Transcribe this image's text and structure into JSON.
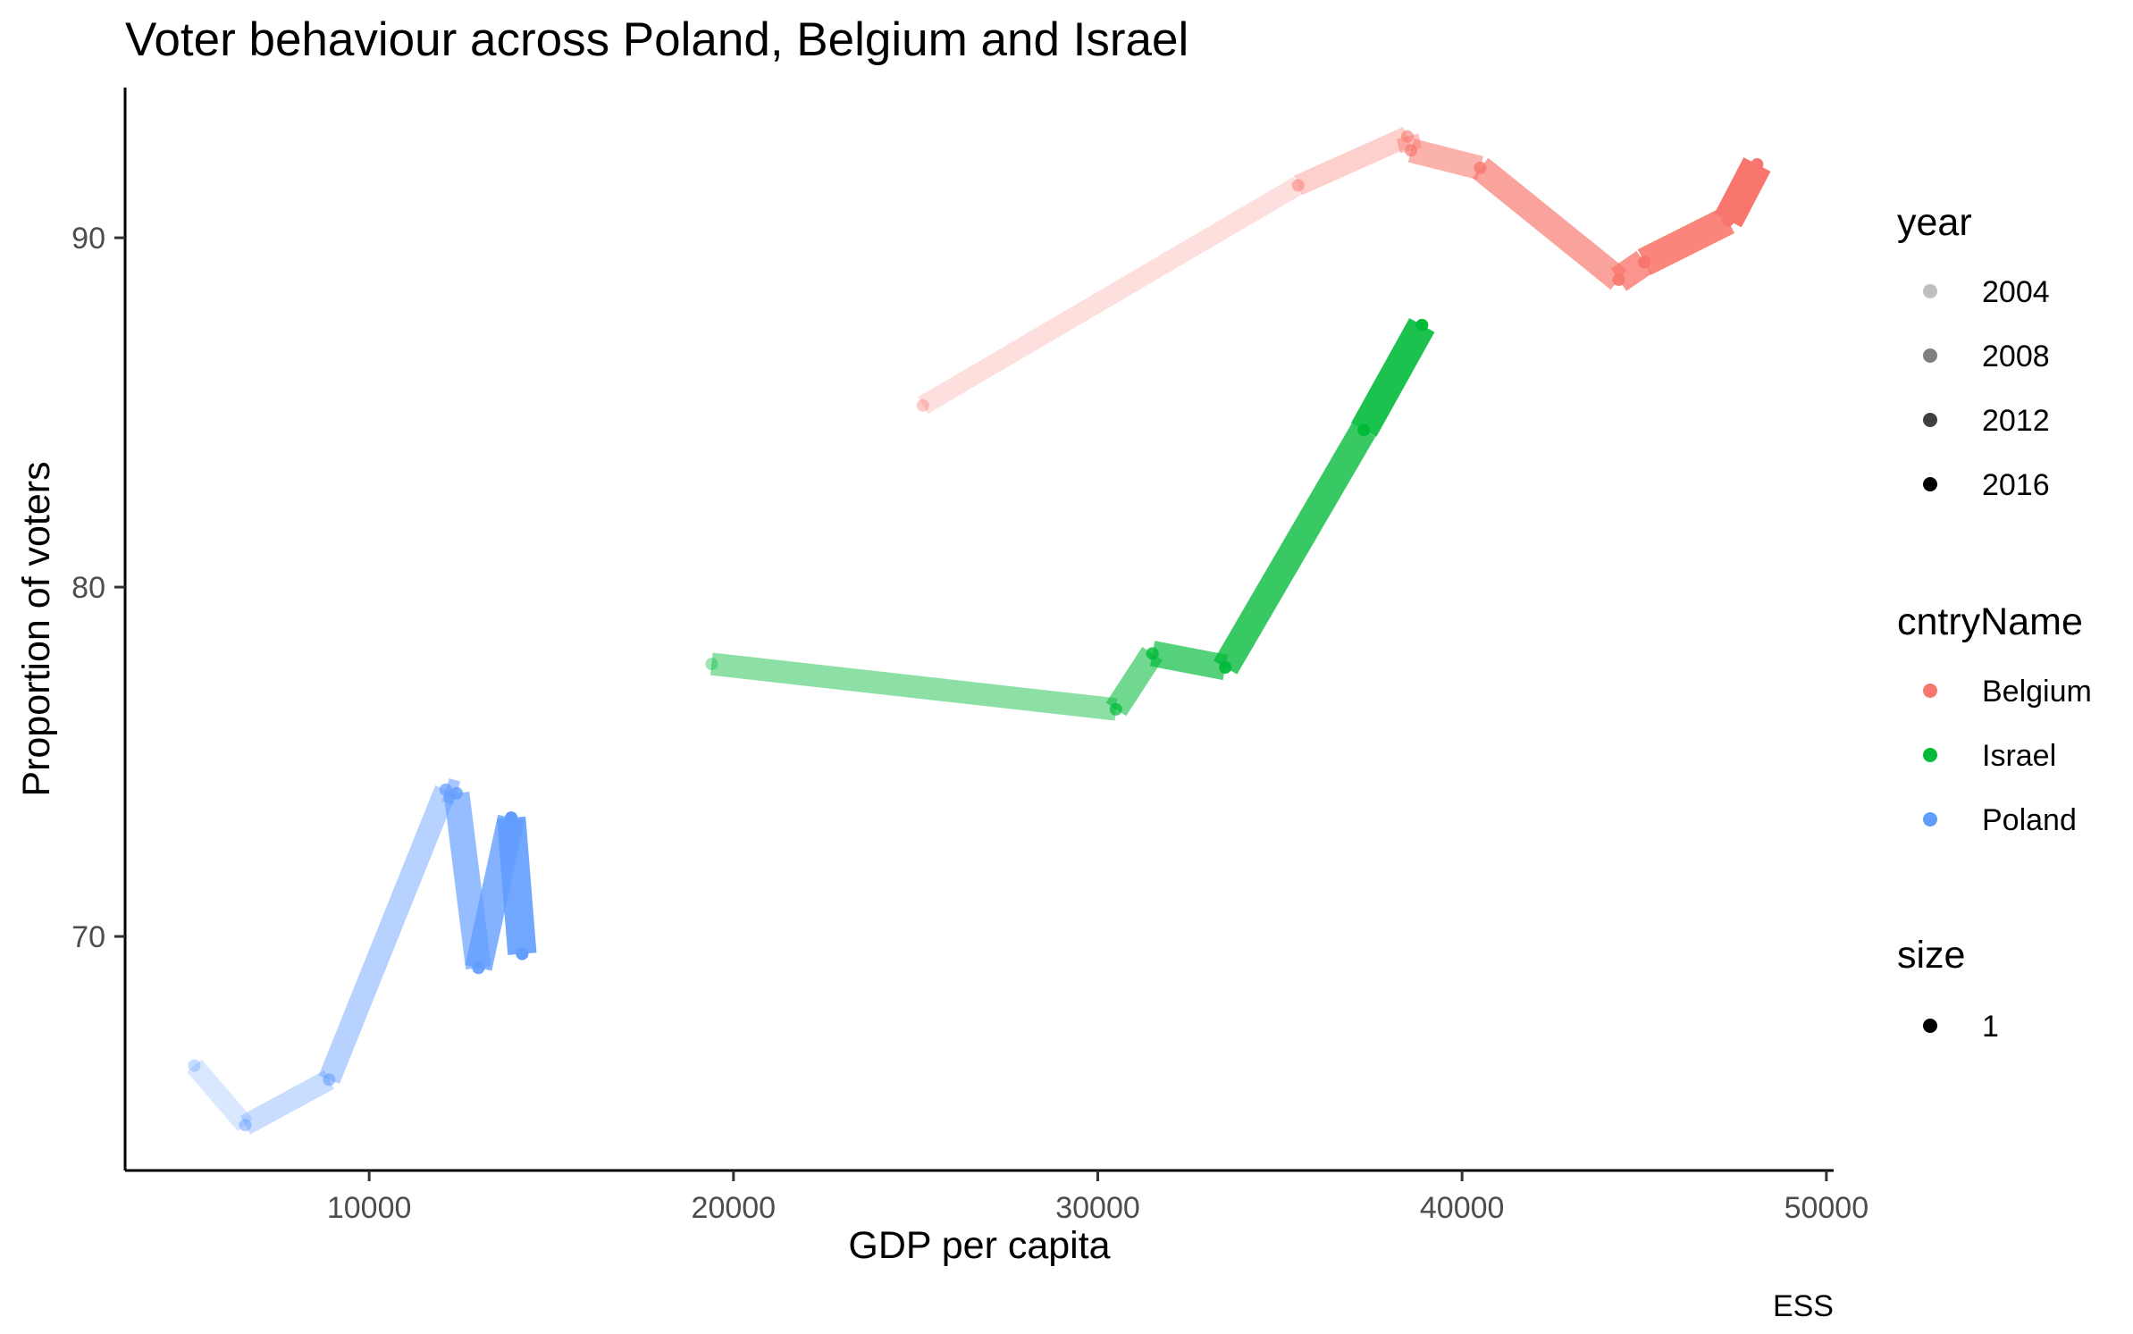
{
  "chart_data": {
    "type": "line",
    "title": "Voter behaviour across Poland, Belgium and Israel",
    "xlabel": "GDP per capita",
    "ylabel": "Proportion of voters",
    "caption": "ESS",
    "xlim": [
      3300,
      50200
    ],
    "ylim": [
      63.3,
      94.3
    ],
    "x_ticks": [
      10000,
      20000,
      30000,
      40000,
      50000
    ],
    "y_ticks": [
      70,
      80,
      90
    ],
    "grid": false,
    "legend_position": "right",
    "legends": [
      {
        "title": "year",
        "type": "alpha",
        "entries": [
          {
            "label": "2004",
            "opacity": 0.25
          },
          {
            "label": "2008",
            "opacity": 0.5
          },
          {
            "label": "2012",
            "opacity": 0.75
          },
          {
            "label": "2016",
            "opacity": 1.0
          }
        ]
      },
      {
        "title": "cntryName",
        "type": "color",
        "entries": [
          {
            "label": "Belgium",
            "color": "#F8766D"
          },
          {
            "label": "Israel",
            "color": "#00BA38"
          },
          {
            "label": "Poland",
            "color": "#619CFF"
          }
        ]
      },
      {
        "title": "size",
        "type": "size",
        "entries": [
          {
            "label": "1",
            "color": "#000000"
          }
        ]
      }
    ],
    "series": [
      {
        "name": "Belgium",
        "color": "#F8766D",
        "points": [
          {
            "x": 25200,
            "y": 85.2,
            "year": 2002
          },
          {
            "x": 35500,
            "y": 91.5,
            "year": 2004
          },
          {
            "x": 38500,
            "y": 92.9,
            "year": 2006
          },
          {
            "x": 38600,
            "y": 92.5,
            "year": 2008
          },
          {
            "x": 40500,
            "y": 92.0,
            "year": 2010
          },
          {
            "x": 44300,
            "y": 88.8,
            "year": 2012
          },
          {
            "x": 45000,
            "y": 89.3,
            "year": 2014
          },
          {
            "x": 47300,
            "y": 90.5,
            "year": 2016
          },
          {
            "x": 48100,
            "y": 92.1,
            "year": 2018
          }
        ]
      },
      {
        "name": "Israel",
        "color": "#00BA38",
        "points": [
          {
            "x": 19400,
            "y": 77.8,
            "year": 2002
          },
          {
            "x": 30500,
            "y": 76.5,
            "year": 2008
          },
          {
            "x": 31500,
            "y": 78.1,
            "year": 2010
          },
          {
            "x": 33500,
            "y": 77.7,
            "year": 2012
          },
          {
            "x": 37300,
            "y": 84.5,
            "year": 2014
          },
          {
            "x": 38900,
            "y": 87.5,
            "year": 2016
          }
        ]
      },
      {
        "name": "Poland",
        "color": "#619CFF",
        "points": [
          {
            "x": 5200,
            "y": 66.3,
            "year": 2002
          },
          {
            "x": 6600,
            "y": 64.6,
            "year": 2004
          },
          {
            "x": 8900,
            "y": 65.9,
            "year": 2006
          },
          {
            "x": 12100,
            "y": 74.2,
            "year": 2008
          },
          {
            "x": 12400,
            "y": 74.1,
            "year": 2010
          },
          {
            "x": 13000,
            "y": 69.1,
            "year": 2012
          },
          {
            "x": 13900,
            "y": 73.4,
            "year": 2014
          },
          {
            "x": 14200,
            "y": 69.5,
            "year": 2016
          }
        ]
      }
    ]
  }
}
